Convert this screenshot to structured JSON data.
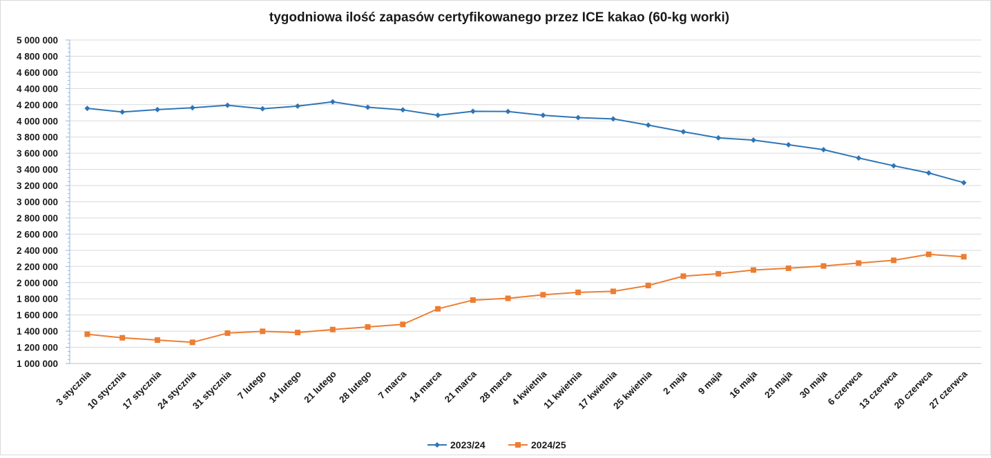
{
  "chart_data": {
    "type": "line",
    "title": "tygodniowa ilość zapasów certyfikowanego przez ICE kakao (60-kg worki)",
    "xlabel": "",
    "ylabel": "",
    "ylim": [
      1000000,
      5000000
    ],
    "y_ticks": [
      "1 000 000",
      "1 200 000",
      "1 400 000",
      "1 600 000",
      "1 800 000",
      "2 000 000",
      "2 200 000",
      "2 400 000",
      "2 600 000",
      "2 800 000",
      "3 000 000",
      "3 200 000",
      "3 400 000",
      "3 600 000",
      "3 800 000",
      "4 000 000",
      "4 200 000",
      "4 400 000",
      "4 600 000",
      "4 800 000",
      "5 000 000"
    ],
    "grid": true,
    "legend_position": "bottom",
    "categories": [
      "3 stycznia",
      "10 stycznia",
      "17 stycznia",
      "24 stycznia",
      "31 stycznia",
      "7 lutego",
      "14 lutego",
      "21 lutego",
      "28 lutego",
      "7 marca",
      "14 marca",
      "21 marca",
      "28 marca",
      "4 kwietnia",
      "11 kwietnia",
      "17 kwietnia",
      "25 kwietnia",
      "2 maja",
      "9 maja",
      "16 maja",
      "23 maja",
      "30 maja",
      "6 czerwca",
      "13 czerwca",
      "20 czerwca",
      "27 czerwca"
    ],
    "series": [
      {
        "name": "2023/24",
        "color": "#2e75b6",
        "marker": "diamond",
        "values": [
          4155000,
          4110000,
          4140000,
          4162000,
          4193000,
          4150000,
          4182000,
          4236000,
          4168000,
          4136000,
          4069000,
          4118000,
          4116000,
          4069000,
          4041000,
          4025000,
          3948000,
          3866000,
          3790000,
          3762000,
          3705000,
          3644000,
          3541000,
          3445000,
          3356000,
          3236000
        ]
      },
      {
        "name": "2024/25",
        "color": "#ed7d31",
        "marker": "square",
        "values": [
          1362000,
          1318000,
          1290000,
          1262000,
          1376000,
          1398000,
          1383000,
          1420000,
          1452000,
          1484000,
          1676000,
          1784000,
          1806000,
          1850000,
          1880000,
          1892000,
          1964000,
          2080000,
          2110000,
          2156000,
          2178000,
          2206000,
          2242000,
          2276000,
          2350000,
          2320000
        ]
      }
    ]
  }
}
